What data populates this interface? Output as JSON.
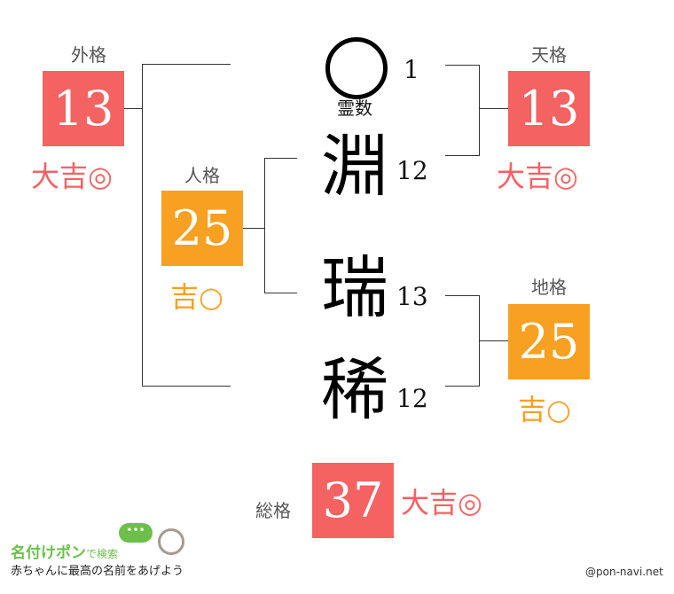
{
  "colors": {
    "great": "#f46262",
    "good": "#f7a021"
  },
  "name": {
    "reisu": {
      "mark": "◯",
      "label": "霊数",
      "count": "1"
    },
    "chars": [
      {
        "char": "淵",
        "strokes": "12"
      },
      {
        "char": "瑞",
        "strokes": "13"
      },
      {
        "char": "稀",
        "strokes": "12"
      }
    ]
  },
  "kaku": {
    "gai": {
      "label": "外格",
      "value": "13",
      "result": "大吉◎"
    },
    "ten": {
      "label": "天格",
      "value": "13",
      "result": "大吉◎"
    },
    "jin": {
      "label": "人格",
      "value": "25",
      "result": "吉○"
    },
    "chi": {
      "label": "地格",
      "value": "25",
      "result": "吉○"
    },
    "so": {
      "label": "総格",
      "value": "37",
      "result": "大吉◎"
    }
  },
  "footer": {
    "logo_main": "名付けポン",
    "logo_sub": "で検索",
    "tagline": "赤ちゃんに最高の名前をあげよう",
    "credit": "@pon-navi.net"
  }
}
